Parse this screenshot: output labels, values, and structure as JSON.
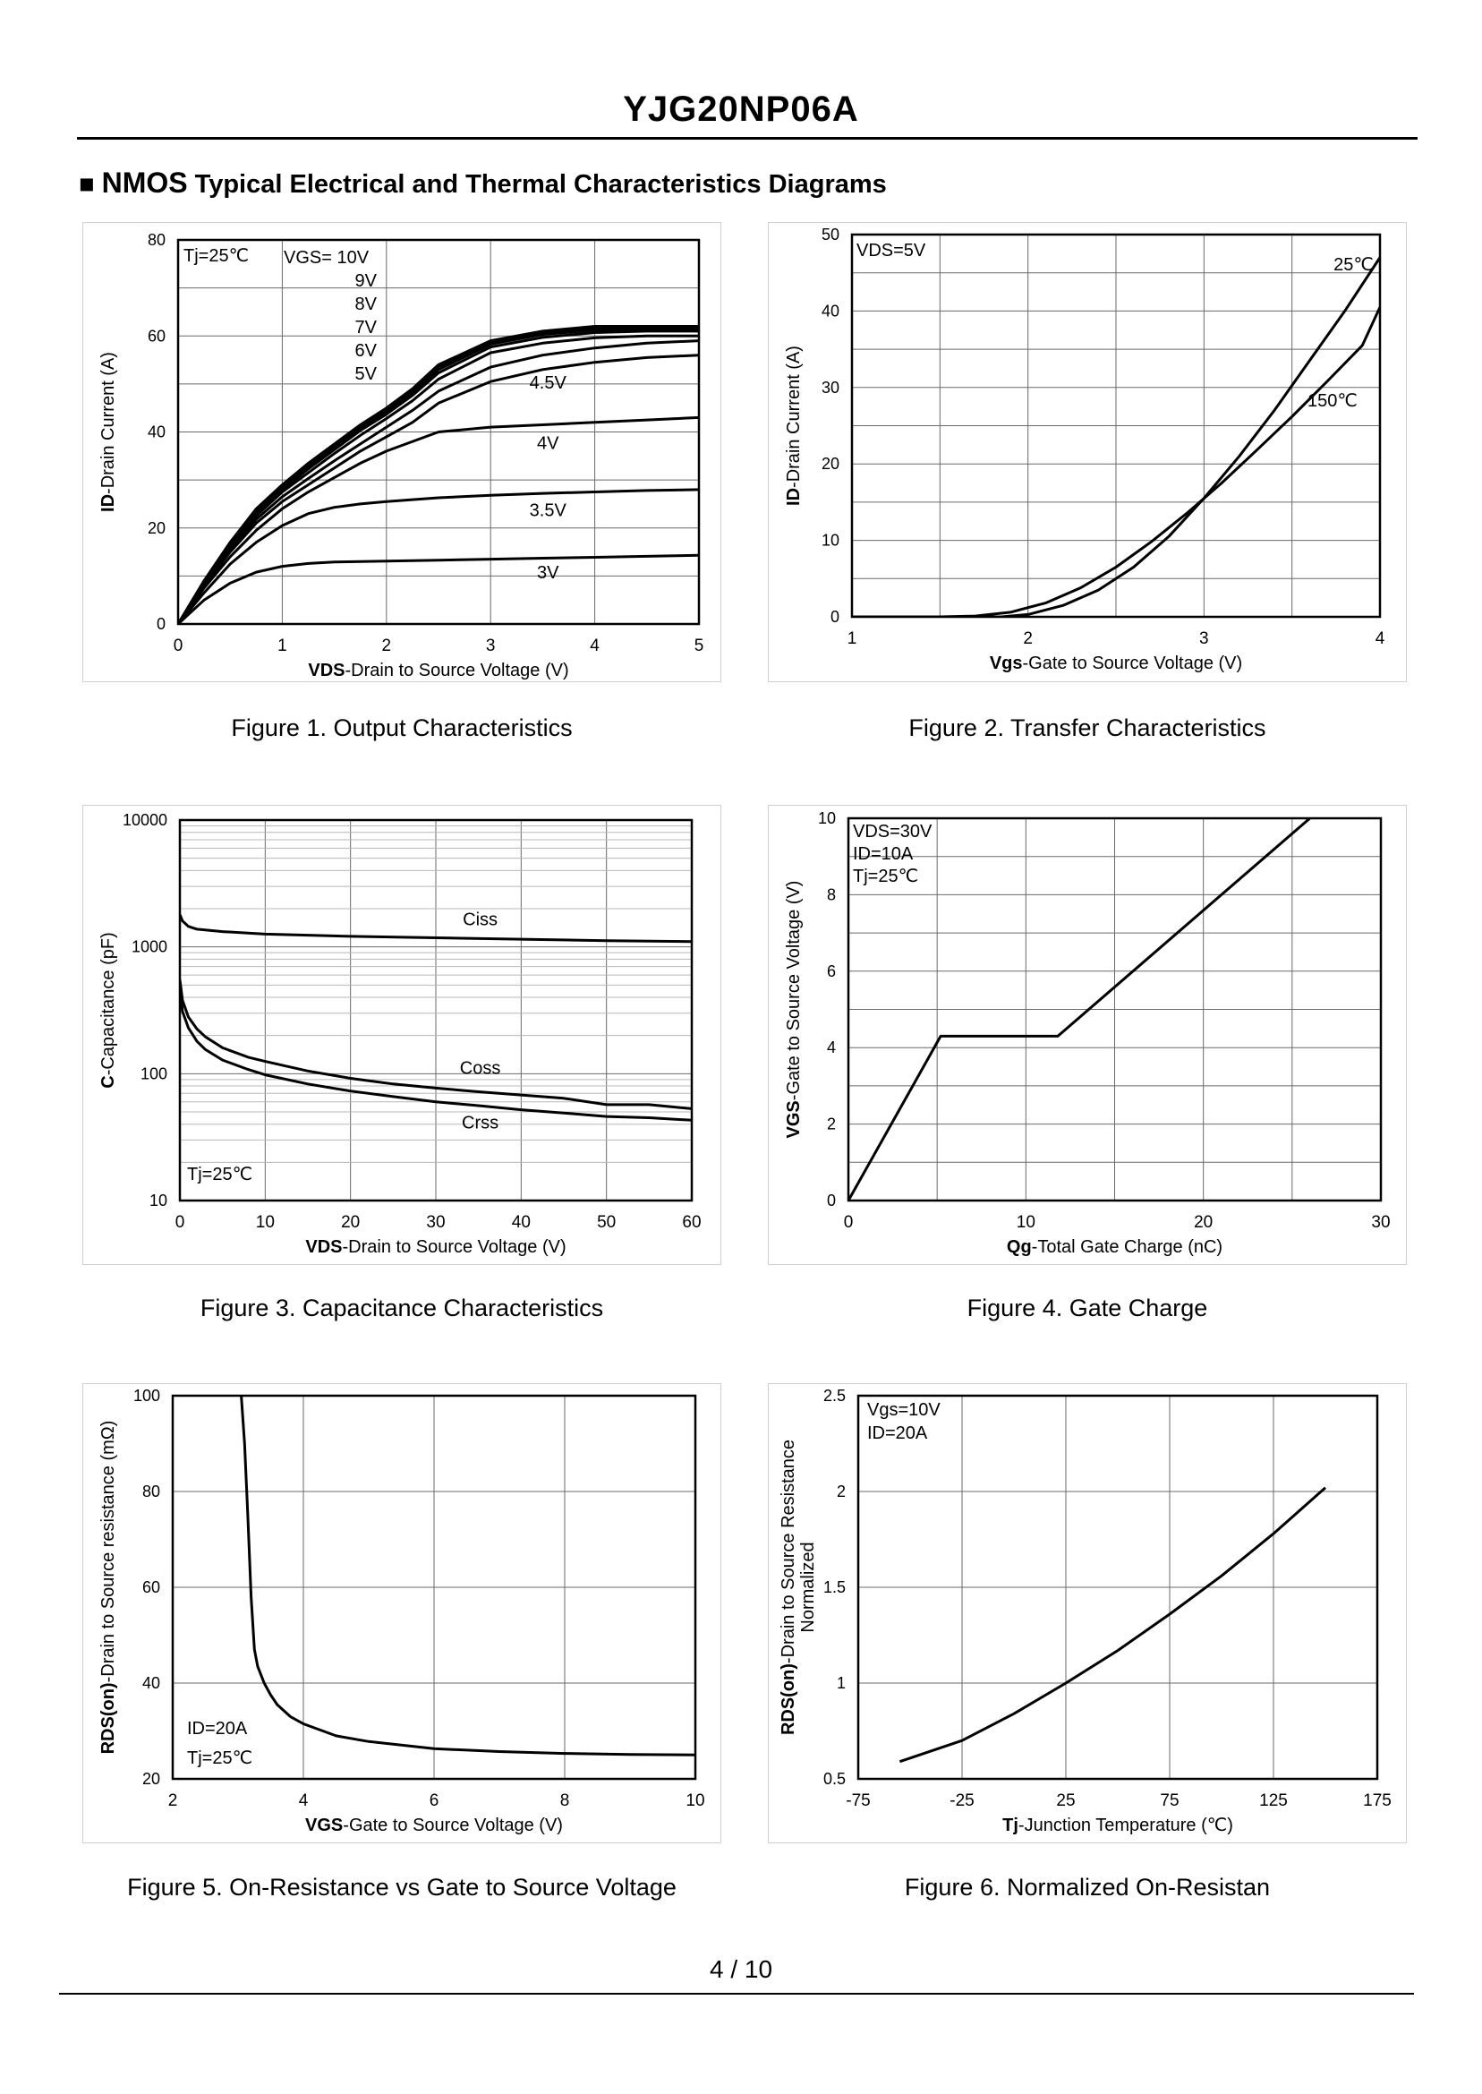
{
  "document": {
    "title": "YJG20NP06A",
    "section_marker": "■",
    "section_bold": "NMOS",
    "section_rest": "Typical Electrical and Thermal Characteristics Diagrams",
    "page_number": "4 / 10"
  },
  "captions": [
    "Figure 1.  Output Characteristics",
    "Figure 2.  Transfer Characteristics",
    "Figure 3.  Capacitance Characteristics",
    "Figure 4.  Gate Charge",
    "Figure 5.  On-Resistance vs Gate to Source Voltage",
    "Figure 6.  Normalized On-Resistan"
  ],
  "chart_data": [
    {
      "type": "line",
      "title": "Figure 1.  Output Characteristics",
      "xlabel_bold": "VDS",
      "xlabel_rest": "-Drain to Source Voltage (V)",
      "ylabel_bold": "ID",
      "ylabel_rest": "-Drain Current (A)",
      "xlim": [
        0,
        5
      ],
      "ylim": [
        0,
        80
      ],
      "xticks": [
        "0",
        "1",
        "2",
        "3",
        "4",
        "5"
      ],
      "yticks": [
        "0",
        "20",
        "40",
        "60",
        "80"
      ],
      "x_grid_count": 5,
      "y_grid_count": 8,
      "legend_lines": [
        "Tj=25℃",
        "VGS= 10V",
        "9V",
        "8V",
        "7V",
        "6V",
        "5V"
      ],
      "series": [
        {
          "name": "10V",
          "x": [
            0,
            0.25,
            0.5,
            0.75,
            1,
            1.25,
            1.5,
            1.75,
            2,
            2.25,
            2.5,
            3,
            3.5,
            4,
            4.5,
            5
          ],
          "y": [
            0,
            9,
            17,
            24,
            29,
            33.5,
            37.5,
            41.5,
            45,
            49,
            54,
            59,
            61,
            62,
            62,
            62
          ]
        },
        {
          "name": "9V",
          "x": [
            0,
            0.25,
            0.5,
            0.75,
            1,
            1.25,
            1.5,
            1.75,
            2,
            2.25,
            2.5,
            3,
            3.5,
            4,
            4.5,
            5
          ],
          "y": [
            0,
            9,
            17,
            23.7,
            28.8,
            33.2,
            37.2,
            41.2,
            44.7,
            48.7,
            53.6,
            58.7,
            60.7,
            61.6,
            61.7,
            61.6
          ]
        },
        {
          "name": "8V",
          "x": [
            0,
            0.25,
            0.5,
            0.75,
            1,
            1.25,
            1.5,
            1.75,
            2,
            2.25,
            2.5,
            3,
            3.5,
            4,
            4.5,
            5
          ],
          "y": [
            0,
            8.8,
            16.7,
            23.3,
            28.4,
            32.8,
            36.8,
            40.8,
            44.3,
            48.2,
            53,
            58.3,
            60.3,
            61.2,
            61.4,
            61.3
          ]
        },
        {
          "name": "7V",
          "x": [
            0,
            0.25,
            0.5,
            0.75,
            1,
            1.25,
            1.5,
            1.75,
            2,
            2.25,
            2.5,
            3,
            3.5,
            4,
            4.5,
            5
          ],
          "y": [
            0,
            8.7,
            16.4,
            23,
            28,
            32.3,
            36.3,
            40.3,
            43.7,
            47.6,
            52.3,
            57.7,
            59.7,
            60.7,
            61,
            61
          ]
        },
        {
          "name": "6V",
          "x": [
            0,
            0.25,
            0.5,
            0.75,
            1,
            1.25,
            1.5,
            1.75,
            2,
            2.25,
            2.5,
            3,
            3.5,
            4,
            4.5,
            5
          ],
          "y": [
            0,
            8.5,
            16,
            22.5,
            27.5,
            31.5,
            35.5,
            39.3,
            42.8,
            46.5,
            51,
            56.5,
            58.5,
            59.6,
            60,
            60
          ]
        },
        {
          "name": "5V",
          "x": [
            0,
            0.25,
            0.5,
            0.75,
            1,
            1.25,
            1.5,
            1.75,
            2,
            2.25,
            2.5,
            3,
            3.5,
            4,
            4.5,
            5
          ],
          "y": [
            0,
            8.3,
            15.6,
            21.8,
            26.5,
            30.3,
            34,
            37.5,
            41,
            44.5,
            48.5,
            53.5,
            56,
            57.5,
            58.5,
            59
          ]
        },
        {
          "name": "4.5V",
          "x": [
            0,
            0.25,
            0.5,
            0.75,
            1,
            1.25,
            1.5,
            1.75,
            2,
            2.25,
            2.5,
            3,
            3.5,
            4,
            4.5,
            5
          ],
          "y": [
            0,
            8,
            15,
            21,
            25.5,
            29,
            32.5,
            36,
            39,
            42,
            46,
            50.5,
            53,
            54.5,
            55.5,
            56
          ]
        },
        {
          "name": "4V",
          "x": [
            0,
            0.25,
            0.5,
            0.75,
            1,
            1.25,
            1.5,
            1.75,
            2,
            2.5,
            3,
            3.5,
            4,
            4.5,
            5
          ],
          "y": [
            0,
            7.5,
            14,
            19.5,
            24,
            27.5,
            30.5,
            33.5,
            36,
            40,
            41,
            41.5,
            42,
            42.5,
            43
          ]
        },
        {
          "name": "3.5V",
          "x": [
            0,
            0.25,
            0.5,
            0.75,
            1,
            1.25,
            1.5,
            1.75,
            2,
            2.5,
            3,
            3.5,
            4,
            4.5,
            5
          ],
          "y": [
            0,
            6.5,
            12.5,
            17,
            20.5,
            23,
            24.3,
            25,
            25.5,
            26.3,
            26.8,
            27.2,
            27.5,
            27.8,
            28
          ]
        },
        {
          "name": "3V",
          "x": [
            0,
            0.25,
            0.5,
            0.75,
            1,
            1.25,
            1.5,
            2,
            2.5,
            3,
            3.5,
            4,
            4.5,
            5
          ],
          "y": [
            0,
            5,
            8.5,
            10.8,
            12,
            12.6,
            12.9,
            13.1,
            13.3,
            13.5,
            13.7,
            13.9,
            14.1,
            14.3
          ]
        }
      ],
      "curve_labels": [
        {
          "text": "4.5V",
          "x": 3.55,
          "y": 49
        },
        {
          "text": "4V",
          "x": 3.55,
          "y": 36.5
        },
        {
          "text": "3.5V",
          "x": 3.55,
          "y": 22.5
        },
        {
          "text": "3V",
          "x": 3.55,
          "y": 9.5
        }
      ]
    },
    {
      "type": "line",
      "title": "Figure 2.  Transfer Characteristics",
      "xlabel_bold": "Vgs",
      "xlabel_rest": "-Gate to Source Voltage (V)",
      "ylabel_bold": "ID",
      "ylabel_rest": "-Drain Current (A)",
      "xlim": [
        1,
        4
      ],
      "ylim": [
        0,
        50
      ],
      "xticks": [
        "1",
        "2",
        "3",
        "4"
      ],
      "yticks": [
        "0",
        "10",
        "20",
        "30",
        "40",
        "50"
      ],
      "x_grid_count": 6,
      "y_grid_count": 10,
      "legend_lines": [
        "VDS=5V"
      ],
      "series": [
        {
          "name": "25℃",
          "x": [
            1,
            1.6,
            1.85,
            2,
            2.2,
            2.4,
            2.6,
            2.8,
            3,
            3.2,
            3.4,
            3.6,
            3.8,
            4
          ],
          "y": [
            0,
            0,
            0,
            0.3,
            1.5,
            3.5,
            6.5,
            10.5,
            15.5,
            21,
            27,
            33.5,
            40,
            47
          ]
        },
        {
          "name": "150℃",
          "x": [
            1,
            1.5,
            1.7,
            1.9,
            2.1,
            2.3,
            2.5,
            2.7,
            2.9,
            3.1,
            3.3,
            3.5,
            3.7,
            3.9,
            4
          ],
          "y": [
            0,
            0,
            0.1,
            0.6,
            1.8,
            3.8,
            6.5,
            9.8,
            13.5,
            17.5,
            21.8,
            26.2,
            30.8,
            35.5,
            40.5
          ]
        }
      ],
      "curve_labels": [
        {
          "text": "25℃",
          "x": 3.85,
          "y": 45.3
        },
        {
          "text": "150℃",
          "x": 3.73,
          "y": 27.5
        }
      ]
    },
    {
      "type": "line",
      "yscale": "log",
      "title": "Figure 3.  Capacitance Characteristics",
      "xlabel_bold": "VDS",
      "xlabel_rest": "-Drain to Source Voltage (V)",
      "ylabel_bold": "C",
      "ylabel_rest": "-Capacitance (pF)",
      "xlim": [
        0,
        60
      ],
      "ylim": [
        10,
        10000
      ],
      "xticks": [
        "0",
        "10",
        "20",
        "30",
        "40",
        "50",
        "60"
      ],
      "yticks": [
        "10",
        "100",
        "1000",
        "10000"
      ],
      "x_grid_count": 6,
      "legend_lines": [
        "Tj=25℃"
      ],
      "series": [
        {
          "name": "Ciss",
          "x": [
            0,
            0.3,
            1,
            2,
            5,
            10,
            20,
            30,
            40,
            50,
            60
          ],
          "y": [
            1800,
            1600,
            1450,
            1380,
            1320,
            1260,
            1210,
            1180,
            1150,
            1120,
            1100
          ]
        },
        {
          "name": "Coss",
          "x": [
            0,
            0.3,
            1,
            2,
            3,
            5,
            8,
            10,
            15,
            20,
            25,
            30,
            35,
            40,
            45,
            50,
            55,
            60
          ],
          "y": [
            550,
            380,
            280,
            225,
            195,
            160,
            135,
            125,
            105,
            92,
            83,
            77,
            72,
            68,
            64,
            57,
            57,
            53
          ]
        },
        {
          "name": "Crss",
          "x": [
            0,
            0.3,
            1,
            2,
            3,
            5,
            8,
            10,
            15,
            20,
            25,
            30,
            35,
            40,
            45,
            50,
            55,
            60
          ],
          "y": [
            470,
            310,
            230,
            180,
            155,
            128,
            108,
            98,
            83,
            73,
            66,
            60,
            56,
            52,
            49,
            46,
            45,
            43
          ]
        }
      ],
      "curve_labels": [
        {
          "text": "Ciss",
          "x": 35.2,
          "y": 1480
        },
        {
          "text": "Coss",
          "x": 35.2,
          "y": 100
        },
        {
          "text": "Crss",
          "x": 35.2,
          "y": 37
        }
      ]
    },
    {
      "type": "line",
      "title": "Figure 4.  Gate Charge",
      "xlabel_bold": "Qg",
      "xlabel_rest": "-Total Gate Charge (nC)",
      "ylabel_bold": "VGS",
      "ylabel_rest": "-Gate to Source Voltage (V)",
      "xlim": [
        0,
        30
      ],
      "ylim": [
        0,
        10
      ],
      "xticks": [
        "0",
        "10",
        "20",
        "30"
      ],
      "yticks": [
        "0",
        "2",
        "4",
        "6",
        "8",
        "10"
      ],
      "x_grid_count": 6,
      "y_grid_count": 10,
      "legend_lines": [
        "VDS=30V",
        "ID=10A",
        "Tj=25℃"
      ],
      "series": [
        {
          "name": "VGS",
          "x": [
            0,
            5.2,
            11.8,
            26
          ],
          "y": [
            0,
            4.3,
            4.3,
            10
          ]
        }
      ]
    },
    {
      "type": "line",
      "title": "Figure 5.  On-Resistance vs Gate to Source Voltage",
      "xlabel_bold": "VGS",
      "xlabel_rest": "-Gate to Source Voltage (V)",
      "ylabel_bold": "RDS(on)",
      "ylabel_rest": "-Drain to Source resistance (mΩ)",
      "xlim": [
        2,
        10
      ],
      "ylim": [
        20,
        100
      ],
      "xticks": [
        "2",
        "4",
        "6",
        "8",
        "10"
      ],
      "yticks": [
        "20",
        "40",
        "60",
        "80",
        "100"
      ],
      "x_grid_count": 4,
      "y_grid_count": 4,
      "legend_lines": [
        "ID=20A",
        "Tj=25℃"
      ],
      "series": [
        {
          "name": "RDS(on)",
          "x": [
            3.05,
            3.1,
            3.15,
            3.2,
            3.25,
            3.3,
            3.4,
            3.5,
            3.6,
            3.8,
            4,
            4.5,
            5,
            6,
            7,
            8,
            9,
            10
          ],
          "y": [
            100,
            90,
            75,
            58,
            47,
            43.5,
            40,
            37.5,
            35.5,
            33,
            31.5,
            29,
            27.8,
            26.3,
            25.7,
            25.3,
            25.1,
            25
          ]
        }
      ]
    },
    {
      "type": "line",
      "title": "Figure 6.  Normalized On-Resistan",
      "xlabel_bold": "Tj",
      "xlabel_rest": "-Junction  Temperature (℃)",
      "ylabel_bold": "RDS(on)",
      "ylabel_rest": "-Drain to Source Resistance",
      "ylabel_line2": "Normalized",
      "xlim": [
        -75,
        175
      ],
      "ylim": [
        0.5,
        2.5
      ],
      "xticks": [
        "-75",
        "-25",
        "25",
        "75",
        "125",
        "175"
      ],
      "yticks": [
        "0.5",
        "1",
        "1.5",
        "2",
        "2.5"
      ],
      "x_grid_count": 5,
      "y_grid_count": 4,
      "legend_lines": [
        "Vgs=10V",
        "ID=20A"
      ],
      "series": [
        {
          "name": "Normalized",
          "x": [
            -55,
            -25,
            0,
            25,
            50,
            75,
            100,
            125,
            150
          ],
          "y": [
            0.59,
            0.7,
            0.84,
            1,
            1.17,
            1.36,
            1.56,
            1.78,
            2.02
          ]
        }
      ]
    }
  ]
}
